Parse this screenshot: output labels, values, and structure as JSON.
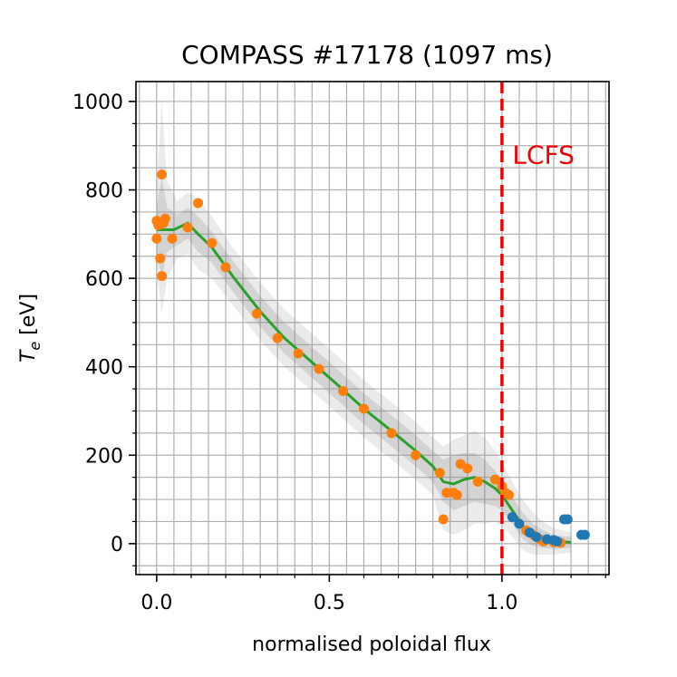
{
  "chart_data": {
    "type": "scatter",
    "title": "COMPASS #17178 (1097 ms)",
    "xlabel": "normalised poloidal flux",
    "ylabel_main": "T",
    "ylabel_sub": "e",
    "ylabel_unit": " [eV]",
    "xlim": [
      -0.06,
      1.31
    ],
    "ylim": [
      -70,
      1045
    ],
    "x_ticks": [
      0.0,
      0.5,
      1.0
    ],
    "x_tick_labels": [
      "0.0",
      "0.5",
      "1.0"
    ],
    "y_ticks": [
      0,
      200,
      400,
      600,
      800,
      1000
    ],
    "y_tick_labels": [
      "0",
      "200",
      "400",
      "600",
      "800",
      "1000"
    ],
    "grid": true,
    "colors": {
      "orange": "#ff7f0e",
      "blue": "#1f77b4",
      "green": "#2ca02c",
      "red": "#ee0000",
      "band": "#808080"
    },
    "annotation": {
      "text": "LCFS",
      "x": 1.03,
      "y": 860
    },
    "separatrix_x": 1.0,
    "series": [
      {
        "name": "orange points",
        "color": "#ff7f0e",
        "points": [
          [
            0.0,
            730
          ],
          [
            0.0,
            690
          ],
          [
            0.005,
            720
          ],
          [
            0.01,
            645
          ],
          [
            0.015,
            835
          ],
          [
            0.015,
            605
          ],
          [
            0.02,
            725
          ],
          [
            0.025,
            735
          ],
          [
            0.045,
            690
          ],
          [
            0.09,
            715
          ],
          [
            0.12,
            770
          ],
          [
            0.16,
            680
          ],
          [
            0.2,
            625
          ],
          [
            0.29,
            520
          ],
          [
            0.35,
            465
          ],
          [
            0.41,
            430
          ],
          [
            0.47,
            395
          ],
          [
            0.54,
            345
          ],
          [
            0.6,
            305
          ],
          [
            0.68,
            250
          ],
          [
            0.75,
            200
          ],
          [
            0.82,
            160
          ],
          [
            0.83,
            55
          ],
          [
            0.84,
            115
          ],
          [
            0.86,
            115
          ],
          [
            0.87,
            110
          ],
          [
            0.88,
            180
          ],
          [
            0.9,
            170
          ],
          [
            0.93,
            140
          ],
          [
            0.98,
            145
          ],
          [
            1.0,
            130
          ],
          [
            1.01,
            115
          ],
          [
            1.02,
            110
          ],
          [
            1.07,
            30
          ],
          [
            1.09,
            20
          ],
          [
            1.11,
            10
          ],
          [
            1.12,
            5
          ],
          [
            1.15,
            3
          ],
          [
            1.17,
            2
          ]
        ]
      },
      {
        "name": "blue points",
        "color": "#1f77b4",
        "points": [
          [
            1.03,
            60
          ],
          [
            1.05,
            45
          ],
          [
            1.08,
            25
          ],
          [
            1.1,
            15
          ],
          [
            1.13,
            10
          ],
          [
            1.15,
            8
          ],
          [
            1.16,
            5
          ],
          [
            1.18,
            55
          ],
          [
            1.19,
            55
          ],
          [
            1.23,
            20
          ],
          [
            1.24,
            20
          ]
        ]
      }
    ],
    "fit": {
      "name": "fit",
      "color": "#2ca02c",
      "points": [
        [
          0.0,
          710
        ],
        [
          0.05,
          710
        ],
        [
          0.09,
          725
        ],
        [
          0.12,
          700
        ],
        [
          0.16,
          670
        ],
        [
          0.22,
          605
        ],
        [
          0.3,
          525
        ],
        [
          0.37,
          465
        ],
        [
          0.45,
          410
        ],
        [
          0.53,
          355
        ],
        [
          0.6,
          305
        ],
        [
          0.68,
          255
        ],
        [
          0.75,
          210
        ],
        [
          0.8,
          175
        ],
        [
          0.83,
          140
        ],
        [
          0.86,
          135
        ],
        [
          0.89,
          145
        ],
        [
          0.92,
          150
        ],
        [
          0.95,
          140
        ],
        [
          0.98,
          125
        ],
        [
          1.0,
          110
        ],
        [
          1.03,
          75
        ],
        [
          1.06,
          40
        ],
        [
          1.09,
          20
        ],
        [
          1.12,
          10
        ],
        [
          1.15,
          5
        ],
        [
          1.2,
          3
        ]
      ]
    },
    "bands": [
      {
        "name": "inner band",
        "opacity": 0.22,
        "upper": [
          [
            0.0,
            760
          ],
          [
            0.015,
            830
          ],
          [
            0.03,
            760
          ],
          [
            0.06,
            745
          ],
          [
            0.09,
            760
          ],
          [
            0.12,
            740
          ],
          [
            0.16,
            705
          ],
          [
            0.22,
            640
          ],
          [
            0.3,
            560
          ],
          [
            0.37,
            500
          ],
          [
            0.45,
            445
          ],
          [
            0.53,
            390
          ],
          [
            0.6,
            340
          ],
          [
            0.68,
            290
          ],
          [
            0.75,
            245
          ],
          [
            0.8,
            210
          ],
          [
            0.83,
            190
          ],
          [
            0.86,
            200
          ],
          [
            0.89,
            205
          ],
          [
            0.92,
            205
          ],
          [
            0.95,
            190
          ],
          [
            0.98,
            165
          ],
          [
            1.0,
            145
          ],
          [
            1.03,
            105
          ],
          [
            1.06,
            70
          ],
          [
            1.09,
            45
          ],
          [
            1.12,
            30
          ],
          [
            1.15,
            20
          ],
          [
            1.2,
            15
          ]
        ],
        "lower": [
          [
            0.0,
            660
          ],
          [
            0.015,
            600
          ],
          [
            0.03,
            660
          ],
          [
            0.06,
            675
          ],
          [
            0.09,
            690
          ],
          [
            0.12,
            660
          ],
          [
            0.16,
            635
          ],
          [
            0.22,
            570
          ],
          [
            0.3,
            490
          ],
          [
            0.37,
            430
          ],
          [
            0.45,
            375
          ],
          [
            0.53,
            320
          ],
          [
            0.6,
            270
          ],
          [
            0.68,
            220
          ],
          [
            0.75,
            175
          ],
          [
            0.8,
            140
          ],
          [
            0.83,
            95
          ],
          [
            0.86,
            75
          ],
          [
            0.89,
            85
          ],
          [
            0.92,
            95
          ],
          [
            0.95,
            90
          ],
          [
            0.98,
            85
          ],
          [
            1.0,
            75
          ],
          [
            1.03,
            45
          ],
          [
            1.06,
            10
          ],
          [
            1.09,
            -5
          ],
          [
            1.12,
            -10
          ],
          [
            1.15,
            -12
          ],
          [
            1.2,
            -10
          ]
        ]
      },
      {
        "name": "outer band",
        "opacity": 0.16,
        "upper": [
          [
            0.0,
            800
          ],
          [
            0.015,
            1000
          ],
          [
            0.03,
            820
          ],
          [
            0.06,
            775
          ],
          [
            0.09,
            795
          ],
          [
            0.12,
            780
          ],
          [
            0.16,
            740
          ],
          [
            0.22,
            670
          ],
          [
            0.3,
            590
          ],
          [
            0.37,
            530
          ],
          [
            0.45,
            475
          ],
          [
            0.53,
            420
          ],
          [
            0.6,
            370
          ],
          [
            0.68,
            320
          ],
          [
            0.75,
            275
          ],
          [
            0.8,
            240
          ],
          [
            0.83,
            220
          ],
          [
            0.86,
            235
          ],
          [
            0.89,
            245
          ],
          [
            0.92,
            255
          ],
          [
            0.95,
            240
          ],
          [
            0.98,
            210
          ],
          [
            1.0,
            185
          ],
          [
            1.03,
            140
          ],
          [
            1.06,
            100
          ],
          [
            1.09,
            70
          ],
          [
            1.12,
            50
          ],
          [
            1.15,
            35
          ],
          [
            1.2,
            25
          ]
        ],
        "lower": [
          [
            0.0,
            620
          ],
          [
            0.015,
            520
          ],
          [
            0.03,
            600
          ],
          [
            0.06,
            645
          ],
          [
            0.09,
            655
          ],
          [
            0.12,
            620
          ],
          [
            0.16,
            600
          ],
          [
            0.22,
            540
          ],
          [
            0.3,
            460
          ],
          [
            0.37,
            400
          ],
          [
            0.45,
            345
          ],
          [
            0.53,
            290
          ],
          [
            0.6,
            240
          ],
          [
            0.68,
            190
          ],
          [
            0.75,
            145
          ],
          [
            0.8,
            110
          ],
          [
            0.83,
            30
          ],
          [
            0.86,
            20
          ],
          [
            0.89,
            30
          ],
          [
            0.92,
            45
          ],
          [
            0.95,
            45
          ],
          [
            0.98,
            50
          ],
          [
            1.0,
            40
          ],
          [
            1.03,
            15
          ],
          [
            1.06,
            -15
          ],
          [
            1.09,
            -25
          ],
          [
            1.12,
            -25
          ],
          [
            1.15,
            -25
          ],
          [
            1.2,
            -20
          ]
        ]
      }
    ]
  }
}
